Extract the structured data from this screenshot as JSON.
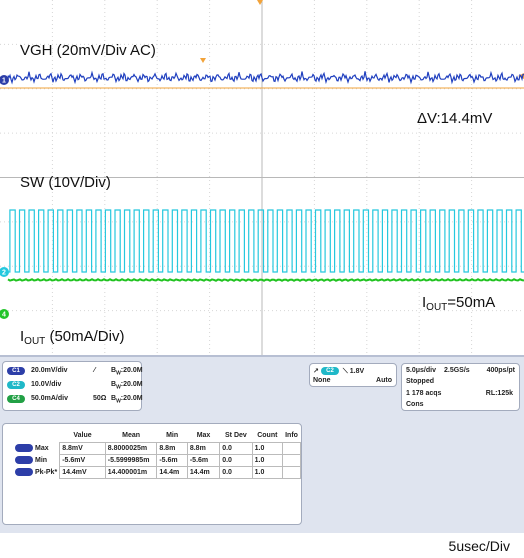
{
  "chart_data": {
    "type": "line",
    "x_scale": "5usec/Div",
    "series": [
      {
        "name": "VGH (20mV/Div  AC)",
        "color": "#1f3fbf",
        "kind": "ripple",
        "ripple_pp_mV": 14.4
      },
      {
        "name": "SW (10V/Div)",
        "color": "#25c8de",
        "kind": "square",
        "high_V": 20,
        "low_V": 0
      },
      {
        "name": "IOUT (50mA/Div)",
        "color": "#1fc21f",
        "kind": "dc",
        "value_mA": 50
      }
    ],
    "annotations": {
      "ripple": "ΔV:14.4mV",
      "iout_prefix": "I",
      "iout_sub": "OUT",
      "iout_value": "=50mA"
    }
  },
  "labels": {
    "vgh": "VGH (20mV/Div  AC)",
    "sw": "SW (10V/Div)",
    "iout_prefix": "I",
    "iout_sub": "OUT",
    "iout_rest": " (50mA/Div)",
    "delta_v": "ΔV:14.4mV",
    "iout_value": "=50mA",
    "timebase": "5usec/Div"
  },
  "markers": {
    "ch1": "1",
    "ch2": "2",
    "ch4": "4"
  },
  "panel": {
    "channels": [
      {
        "pill": "C1",
        "scale": "20.0mV/div",
        "coupling": "AC",
        "bw": "20.0M"
      },
      {
        "pill": "C2",
        "scale": "10.0V/div",
        "coupling": "",
        "bw": "20.0M"
      },
      {
        "pill": "C4",
        "scale": "50.0mA/div",
        "coupling": "50Ω",
        "bw": "20.0M"
      }
    ],
    "bw_prefix": "B",
    "bw_sub": "W",
    "trigger": {
      "channel": "C2",
      "level": "1.8V",
      "mode_left": "None",
      "mode_right": "Auto"
    },
    "acquisition": {
      "time_div": "5.0μs/div",
      "sample_rate": "2.5GS/s",
      "resolution": "400ps/pt",
      "state": "Stopped",
      "acqs": "1 178 acqs",
      "record": "RL:125k",
      "mode": "Cons"
    },
    "measure": {
      "headers": [
        "Value",
        "Mean",
        "Min",
        "Max",
        "St Dev",
        "Count",
        "Info"
      ],
      "rows": [
        {
          "name": "Max",
          "cells": [
            "8.8mV",
            "8.8000025m",
            "8.8m",
            "8.8m",
            "0.0",
            "1.0",
            ""
          ]
        },
        {
          "name": "Min",
          "cells": [
            "-5.6mV",
            "-5.5999985m",
            "-5.6m",
            "-5.6m",
            "0.0",
            "1.0",
            ""
          ]
        },
        {
          "name": "Pk-Pk*",
          "cells": [
            "14.4mV",
            "14.400001m",
            "14.4m",
            "14.4m",
            "0.0",
            "1.0",
            ""
          ]
        }
      ]
    }
  }
}
